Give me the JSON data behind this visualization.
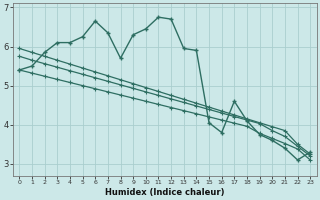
{
  "xlabel": "Humidex (Indice chaleur)",
  "bg_color": "#cce8e8",
  "grid_color": "#aacece",
  "line_color": "#2e6e62",
  "xlim": [
    -0.5,
    23.5
  ],
  "ylim": [
    2.7,
    7.1
  ],
  "yticks": [
    3,
    4,
    5,
    6,
    7
  ],
  "xticks": [
    0,
    1,
    2,
    3,
    4,
    5,
    6,
    7,
    8,
    9,
    10,
    11,
    12,
    13,
    14,
    15,
    16,
    17,
    18,
    19,
    20,
    21,
    22,
    23
  ],
  "zigzag": [
    5.4,
    5.5,
    5.85,
    6.1,
    6.1,
    6.25,
    6.65,
    6.35,
    5.7,
    6.3,
    6.45,
    6.75,
    6.7,
    5.95,
    5.9,
    4.05,
    3.8,
    4.6,
    4.1,
    3.75,
    3.6,
    3.4,
    3.1,
    3.3
  ],
  "line1": [
    5.95,
    5.85,
    5.75,
    5.65,
    5.55,
    5.45,
    5.35,
    5.25,
    5.15,
    5.05,
    4.95,
    4.85,
    4.75,
    4.65,
    4.55,
    4.45,
    4.35,
    4.25,
    4.15,
    4.05,
    3.95,
    3.85,
    3.5,
    3.25
  ],
  "line2": [
    5.75,
    5.65,
    5.56,
    5.47,
    5.38,
    5.29,
    5.2,
    5.11,
    5.02,
    4.93,
    4.84,
    4.75,
    4.66,
    4.57,
    4.48,
    4.39,
    4.3,
    4.21,
    4.12,
    4.03,
    3.85,
    3.7,
    3.45,
    3.2
  ],
  "line3": [
    5.4,
    5.32,
    5.24,
    5.16,
    5.08,
    5.0,
    4.92,
    4.84,
    4.76,
    4.68,
    4.6,
    4.52,
    4.44,
    4.36,
    4.28,
    4.2,
    4.12,
    4.04,
    3.96,
    3.78,
    3.65,
    3.52,
    3.38,
    3.1
  ]
}
